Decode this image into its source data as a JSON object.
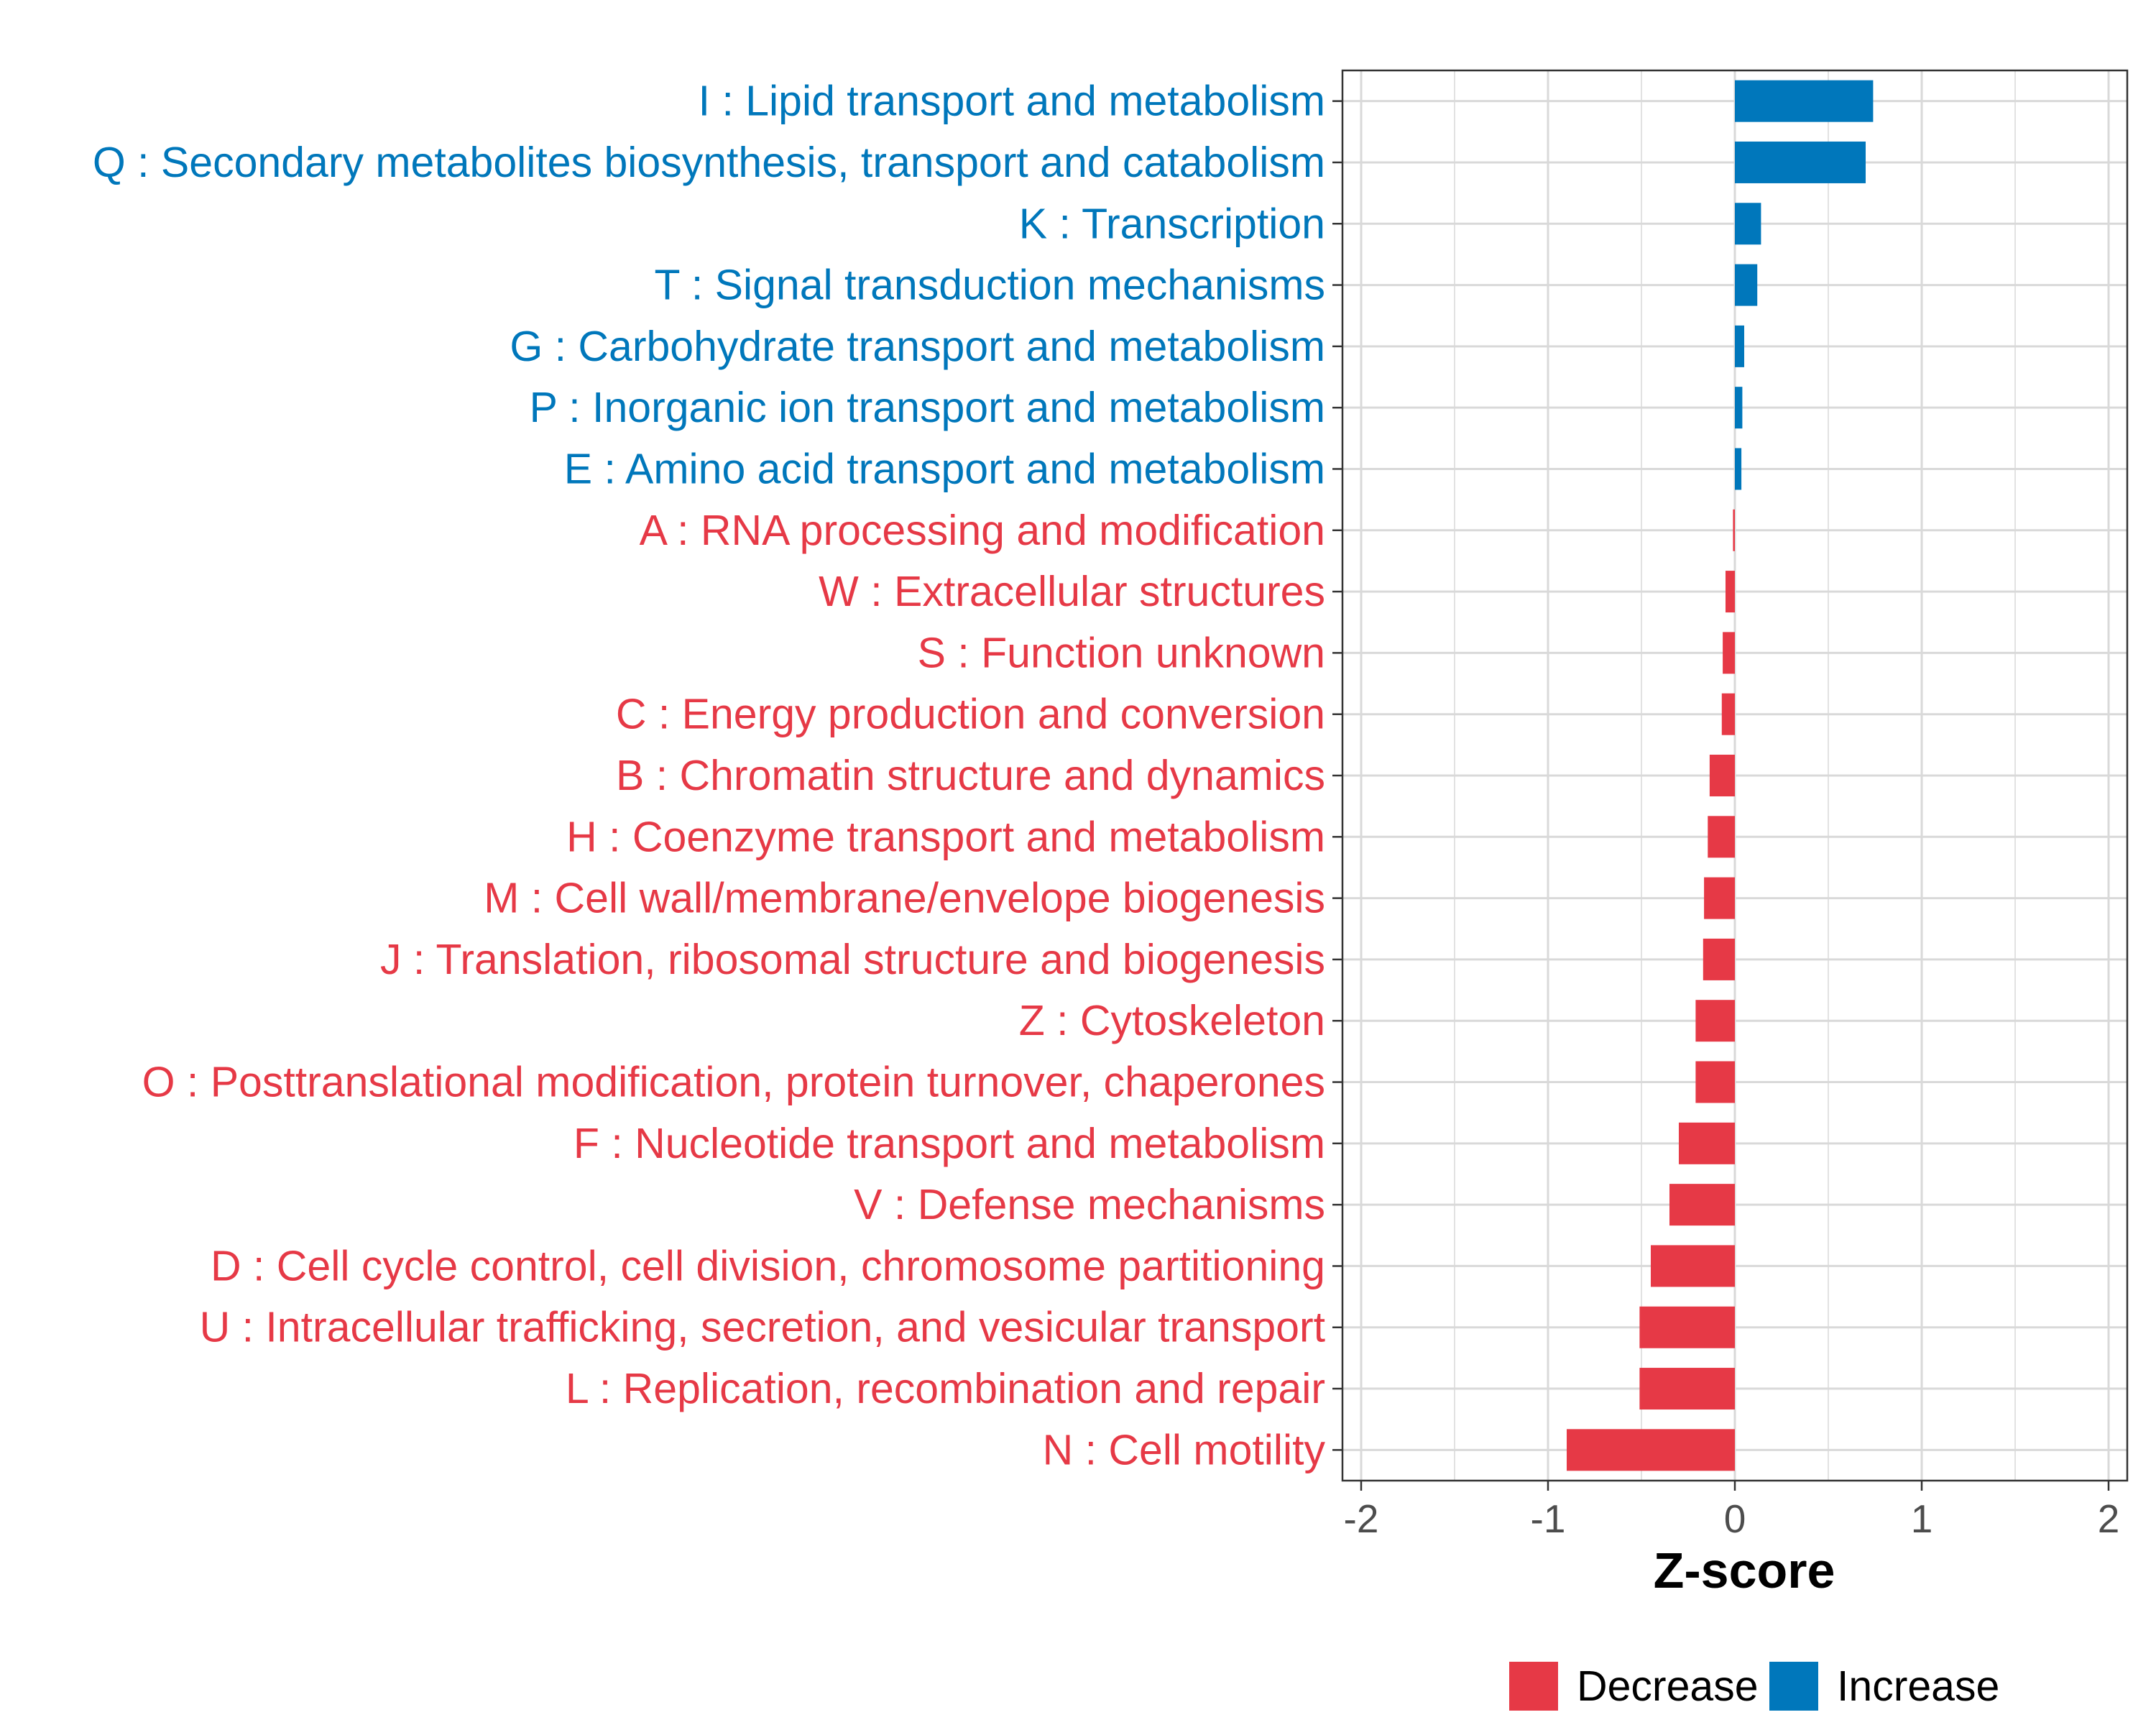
{
  "colors": {
    "decrease": "#E63946",
    "increase": "#0077BB",
    "grid": "#d9d9d9",
    "axis": "#333333"
  },
  "chart_data": {
    "type": "bar",
    "orientation": "horizontal",
    "xlabel": "Z-score",
    "xlim": [
      -2.1,
      2.1
    ],
    "xticks": [
      -2,
      -1,
      0,
      1,
      2
    ],
    "xtick_labels": [
      "-2",
      "-1",
      "0",
      "1",
      "2"
    ],
    "grid": true,
    "legend_position": "bottom-right",
    "legend": [
      {
        "label": "Decrease",
        "group": "decrease"
      },
      {
        "label": "Increase",
        "group": "increase"
      }
    ],
    "categories": [
      {
        "label": "I : Lipid transport and metabolism",
        "value": 0.74,
        "group": "increase"
      },
      {
        "label": "Q : Secondary metabolites biosynthesis, transport and catabolism",
        "value": 0.7,
        "group": "increase"
      },
      {
        "label": "K : Transcription",
        "value": 0.14,
        "group": "increase"
      },
      {
        "label": "T : Signal transduction mechanisms",
        "value": 0.12,
        "group": "increase"
      },
      {
        "label": "G : Carbohydrate transport and metabolism",
        "value": 0.05,
        "group": "increase"
      },
      {
        "label": "P : Inorganic ion transport and metabolism",
        "value": 0.04,
        "group": "increase"
      },
      {
        "label": "E : Amino acid transport and metabolism",
        "value": 0.035,
        "group": "increase"
      },
      {
        "label": "A : RNA processing and modification",
        "value": -0.01,
        "group": "decrease"
      },
      {
        "label": "W : Extracellular structures",
        "value": -0.05,
        "group": "decrease"
      },
      {
        "label": "S : Function unknown",
        "value": -0.065,
        "group": "decrease"
      },
      {
        "label": "C : Energy production and conversion",
        "value": -0.07,
        "group": "decrease"
      },
      {
        "label": "B : Chromatin structure and dynamics",
        "value": -0.135,
        "group": "decrease"
      },
      {
        "label": "H : Coenzyme transport and metabolism",
        "value": -0.145,
        "group": "decrease"
      },
      {
        "label": "M : Cell wall/membrane/envelope biogenesis",
        "value": -0.165,
        "group": "decrease"
      },
      {
        "label": "J : Translation, ribosomal structure and biogenesis",
        "value": -0.17,
        "group": "decrease"
      },
      {
        "label": "Z : Cytoskeleton",
        "value": -0.21,
        "group": "decrease"
      },
      {
        "label": "O : Posttranslational modification, protein turnover, chaperones",
        "value": -0.21,
        "group": "decrease"
      },
      {
        "label": "F : Nucleotide transport and metabolism",
        "value": -0.3,
        "group": "decrease"
      },
      {
        "label": "V : Defense mechanisms",
        "value": -0.35,
        "group": "decrease"
      },
      {
        "label": "D : Cell cycle control, cell division, chromosome partitioning",
        "value": -0.45,
        "group": "decrease"
      },
      {
        "label": "U : Intracellular trafficking, secretion, and vesicular transport",
        "value": -0.51,
        "group": "decrease"
      },
      {
        "label": "L : Replication, recombination and repair",
        "value": -0.51,
        "group": "decrease"
      },
      {
        "label": "N : Cell motility",
        "value": -0.9,
        "group": "decrease"
      }
    ]
  }
}
